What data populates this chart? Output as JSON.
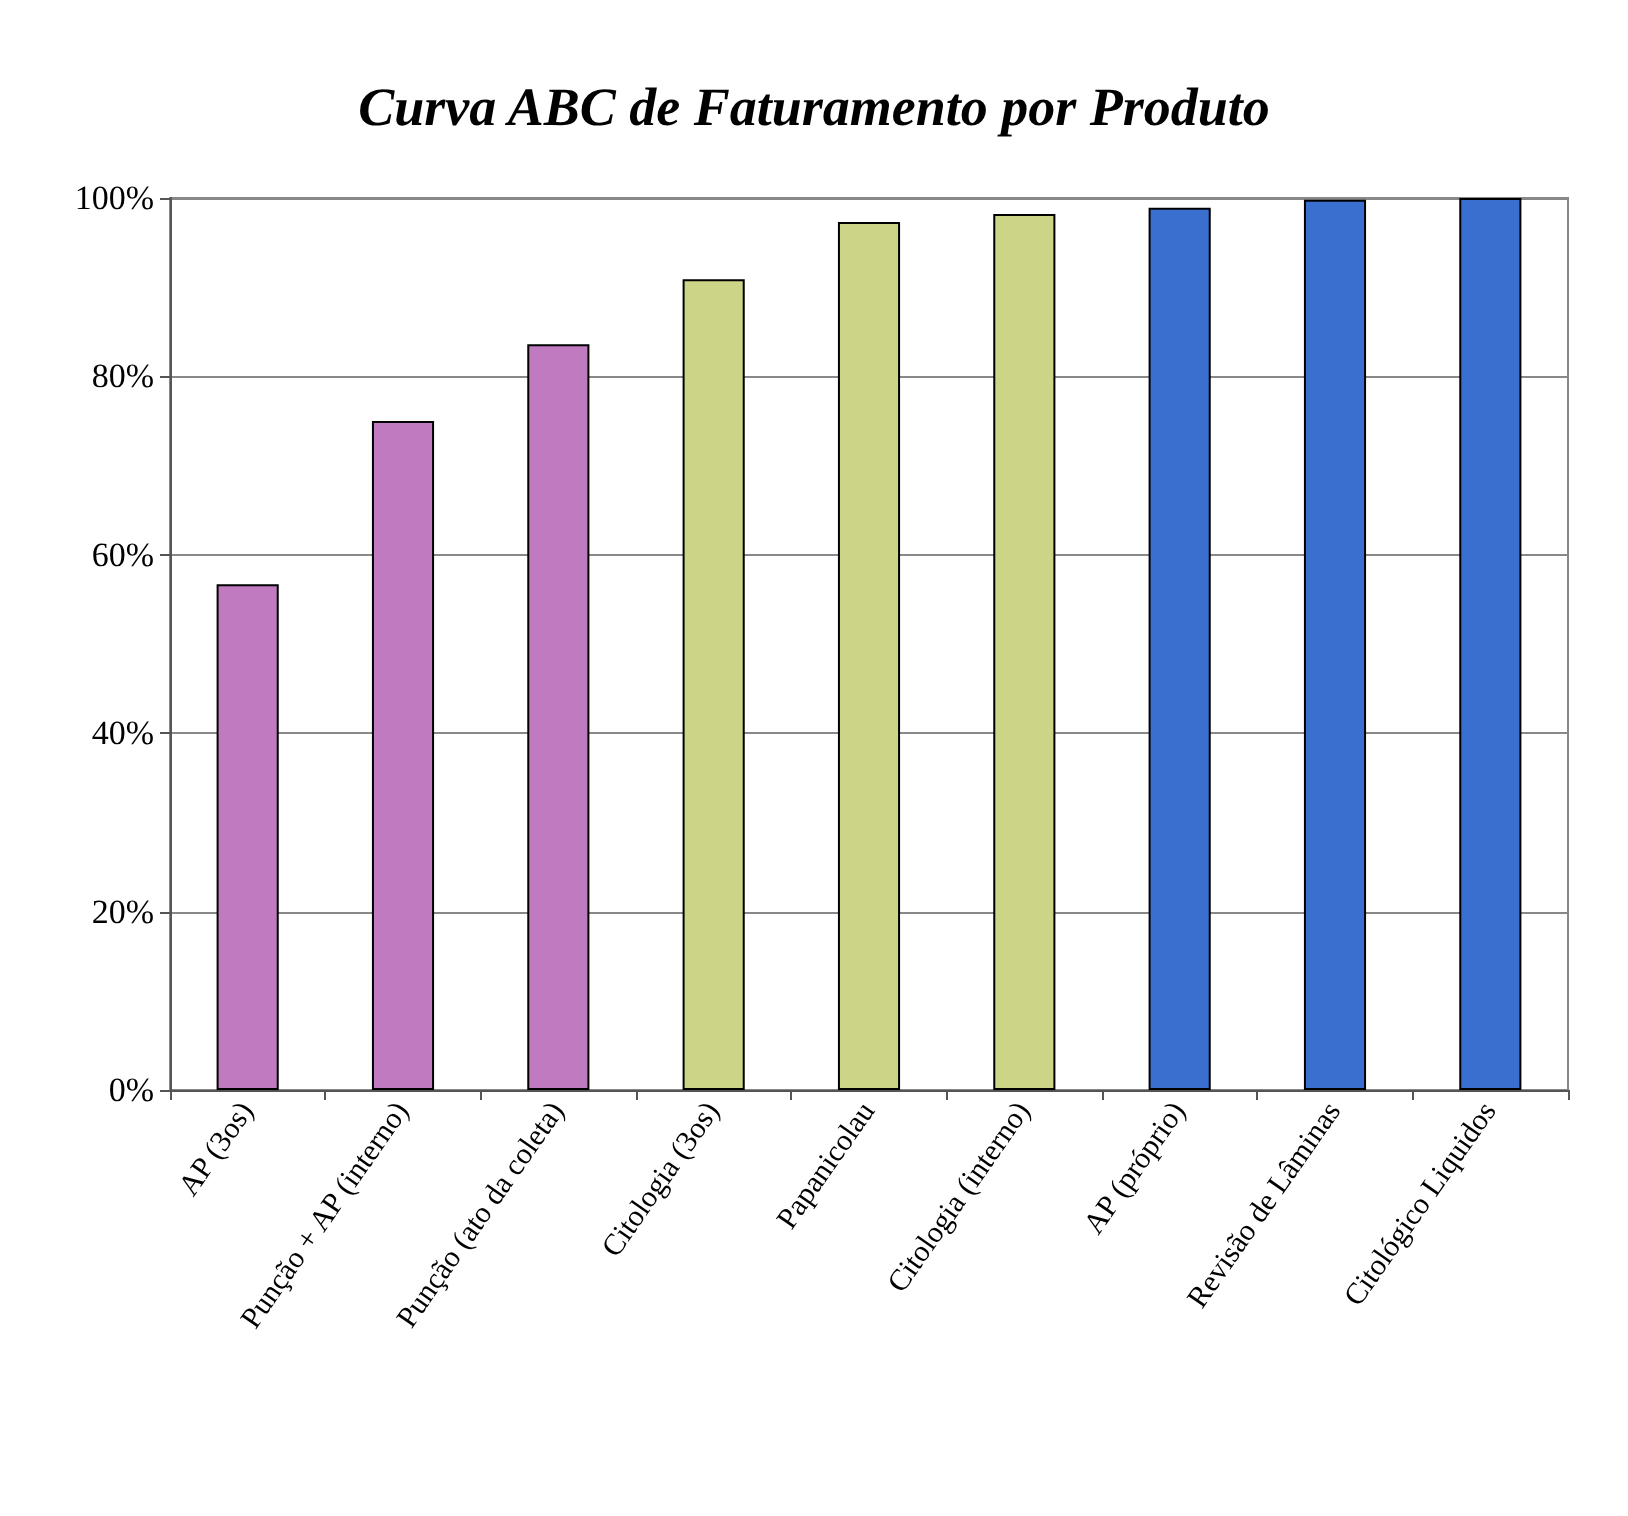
{
  "chart_data": {
    "type": "bar",
    "title": "Curva ABC de Faturamento por Produto",
    "categories": [
      "AP (3os)",
      "Punção + AP (interno)",
      "Punção (ato da coleta)",
      "Citologia (3os)",
      "Papanicolau",
      "Citologia (interno)",
      "AP (próprio)",
      "Revisão de Lâminas",
      "Citológico Liquidos"
    ],
    "values": [
      56.7,
      75.0,
      83.6,
      90.9,
      97.3,
      98.2,
      98.9,
      99.8,
      100
    ],
    "colors": [
      "#c07ac0",
      "#c07ac0",
      "#c07ac0",
      "#ccd488",
      "#ccd488",
      "#ccd488",
      "#3a6fd0",
      "#3a6fd0",
      "#3a6fd0"
    ],
    "ylim": [
      0,
      100
    ],
    "yticks": [
      {
        "value": 0,
        "label": "0%"
      },
      {
        "value": 20,
        "label": "20%"
      },
      {
        "value": 40,
        "label": "40%"
      },
      {
        "value": 60,
        "label": "60%"
      },
      {
        "value": 80,
        "label": "80%"
      },
      {
        "value": 100,
        "label": "100%"
      }
    ],
    "grid": "y"
  }
}
